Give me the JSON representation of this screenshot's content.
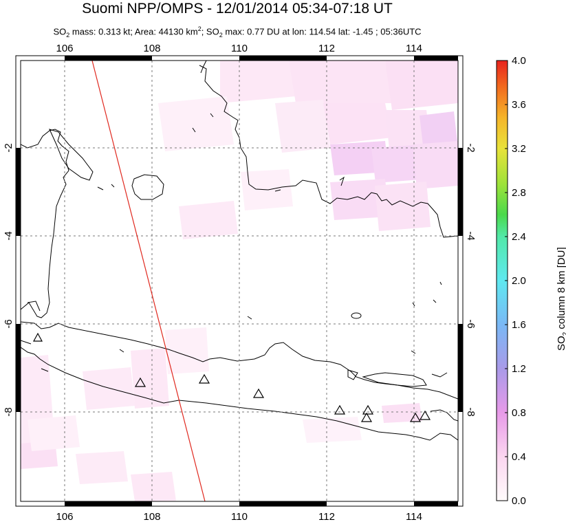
{
  "title": "Suomi NPP/OMPS - 12/01/2014 05:34-07:18 UT",
  "subtitle": {
    "so2_label": "SO",
    "so2_sub": "2",
    "mass_text": " mass: 0.313 kt; Area: 44130 km",
    "area_sup": "2",
    "max_label": "; SO",
    "max_sub": "2",
    "max_text": " max: 0.77 DU at lon: 114.54 lat: -1.45 ; 05:36UTC"
  },
  "map": {
    "lon_ticks_top": [
      "106",
      "108",
      "110",
      "112",
      "114"
    ],
    "lon_ticks_bottom": [
      "106",
      "108",
      "110",
      "112",
      "114"
    ],
    "lat_ticks": [
      "-2",
      "-4",
      "-6",
      "-8"
    ],
    "volcano_symbol": "triangle-icon",
    "orbit_track_color": "#e0281e"
  },
  "colorbar": {
    "ticks": [
      "4.0",
      "3.6",
      "3.2",
      "2.8",
      "2.4",
      "2.0",
      "1.6",
      "1.2",
      "0.8",
      "0.4",
      "0.0"
    ],
    "title_main": "SO",
    "title_sub": "2",
    "title_rest": " column 8 km [DU]",
    "colors": [
      "#fffbfb",
      "#fbd6f0",
      "#e79ae8",
      "#a99ae8",
      "#7ab8f5",
      "#5fe8f0",
      "#52e8a8",
      "#4bd94b",
      "#9fe23a",
      "#e8e23a",
      "#f5b52a",
      "#f26a1e",
      "#e8231e"
    ]
  }
}
